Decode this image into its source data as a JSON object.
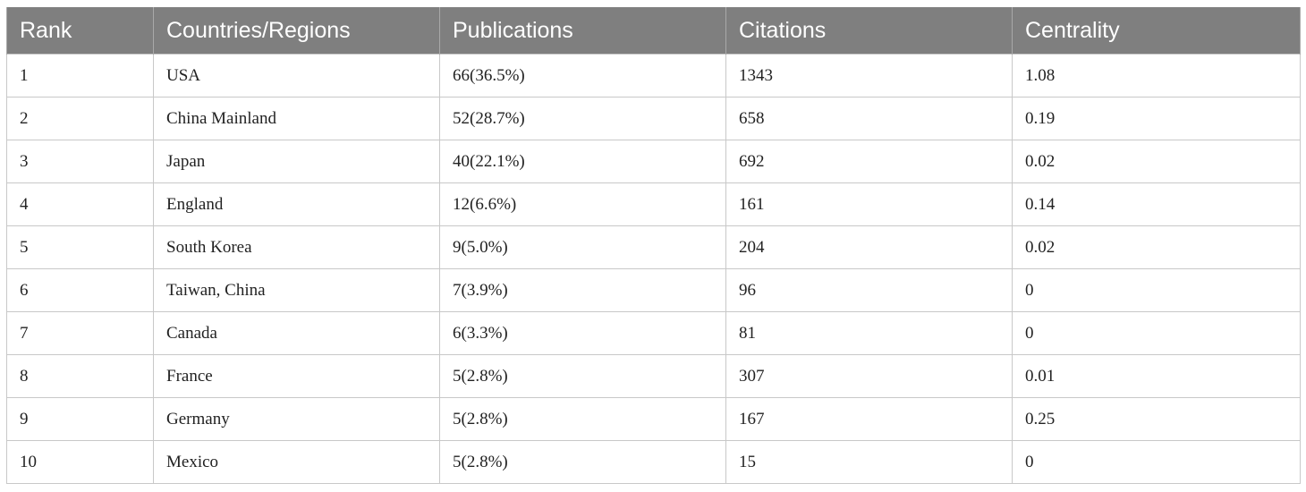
{
  "table": {
    "headers": [
      "Rank",
      "Countries/Regions",
      "Publications",
      "Citations",
      "Centrality"
    ],
    "rows": [
      [
        "1",
        "USA",
        "66(36.5%)",
        "1343",
        "1.08"
      ],
      [
        "2",
        "China Mainland",
        "52(28.7%)",
        "658",
        "0.19"
      ],
      [
        "3",
        "Japan",
        "40(22.1%)",
        "692",
        "0.02"
      ],
      [
        "4",
        "England",
        "12(6.6%)",
        "161",
        "0.14"
      ],
      [
        "5",
        "South Korea",
        "9(5.0%)",
        "204",
        "0.02"
      ],
      [
        "6",
        "Taiwan, China",
        "7(3.9%)",
        "96",
        "0"
      ],
      [
        "7",
        "Canada",
        "6(3.3%)",
        "81",
        "0"
      ],
      [
        "8",
        "France",
        "5(2.8%)",
        "307",
        "0.01"
      ],
      [
        "9",
        "Germany",
        "5(2.8%)",
        "167",
        "0.25"
      ],
      [
        "10",
        "Mexico",
        "5(2.8%)",
        "15",
        "0"
      ]
    ]
  },
  "colors": {
    "header_background": "#7f7f7f",
    "header_text": "#ffffff",
    "grid_line": "#c8c8c8"
  }
}
